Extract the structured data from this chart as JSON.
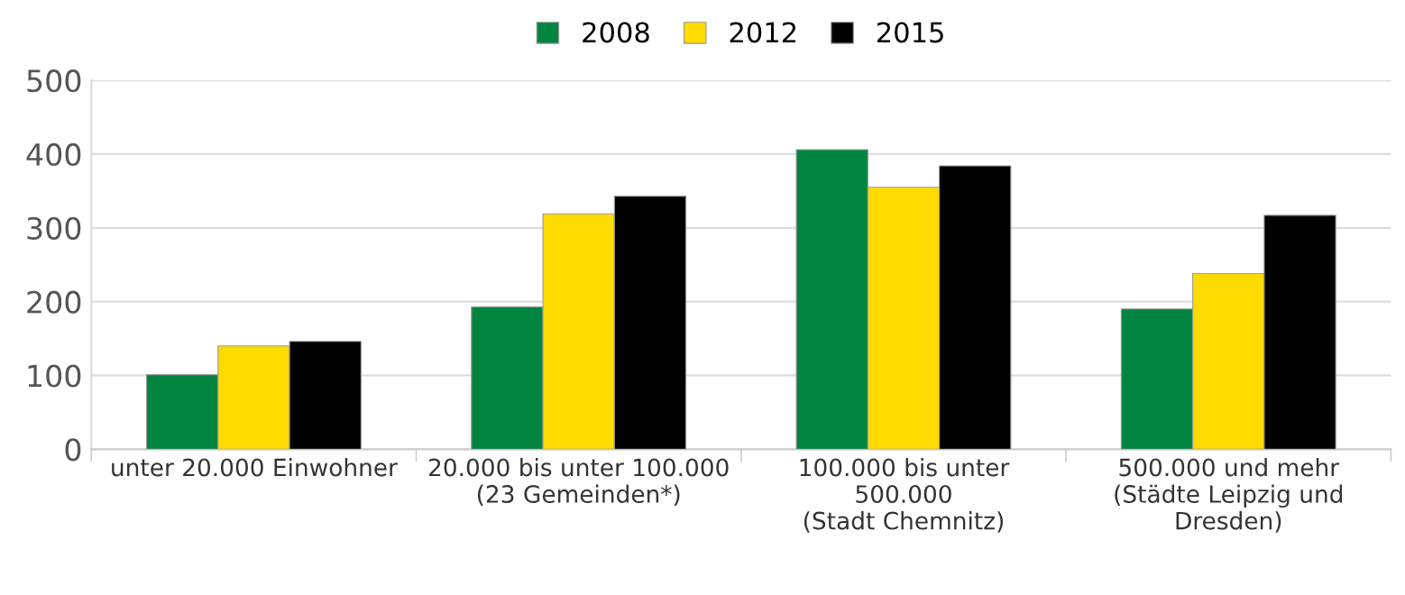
{
  "chart_data": {
    "type": "bar",
    "categories": [
      "unter 20.000 Einwohner",
      "20.000 bis unter 100.000\n(23 Gemeinden*)",
      "100.000 bis unter\n500.000\n(Stadt Chemnitz)",
      "500.000 und mehr\n(Städte Leipzig und\nDresden)"
    ],
    "series": [
      {
        "name": "2008",
        "color": "#00843f",
        "values": [
          101,
          193,
          406,
          190
        ]
      },
      {
        "name": "2012",
        "color": "#ffdb00",
        "values": [
          140,
          319,
          355,
          238
        ]
      },
      {
        "name": "2015",
        "color": "#000000",
        "values": [
          146,
          343,
          384,
          317
        ]
      }
    ],
    "ylim": [
      0,
      500
    ],
    "yticks": [
      0,
      100,
      200,
      300,
      400,
      500
    ],
    "grid": "y",
    "legend": "top"
  }
}
